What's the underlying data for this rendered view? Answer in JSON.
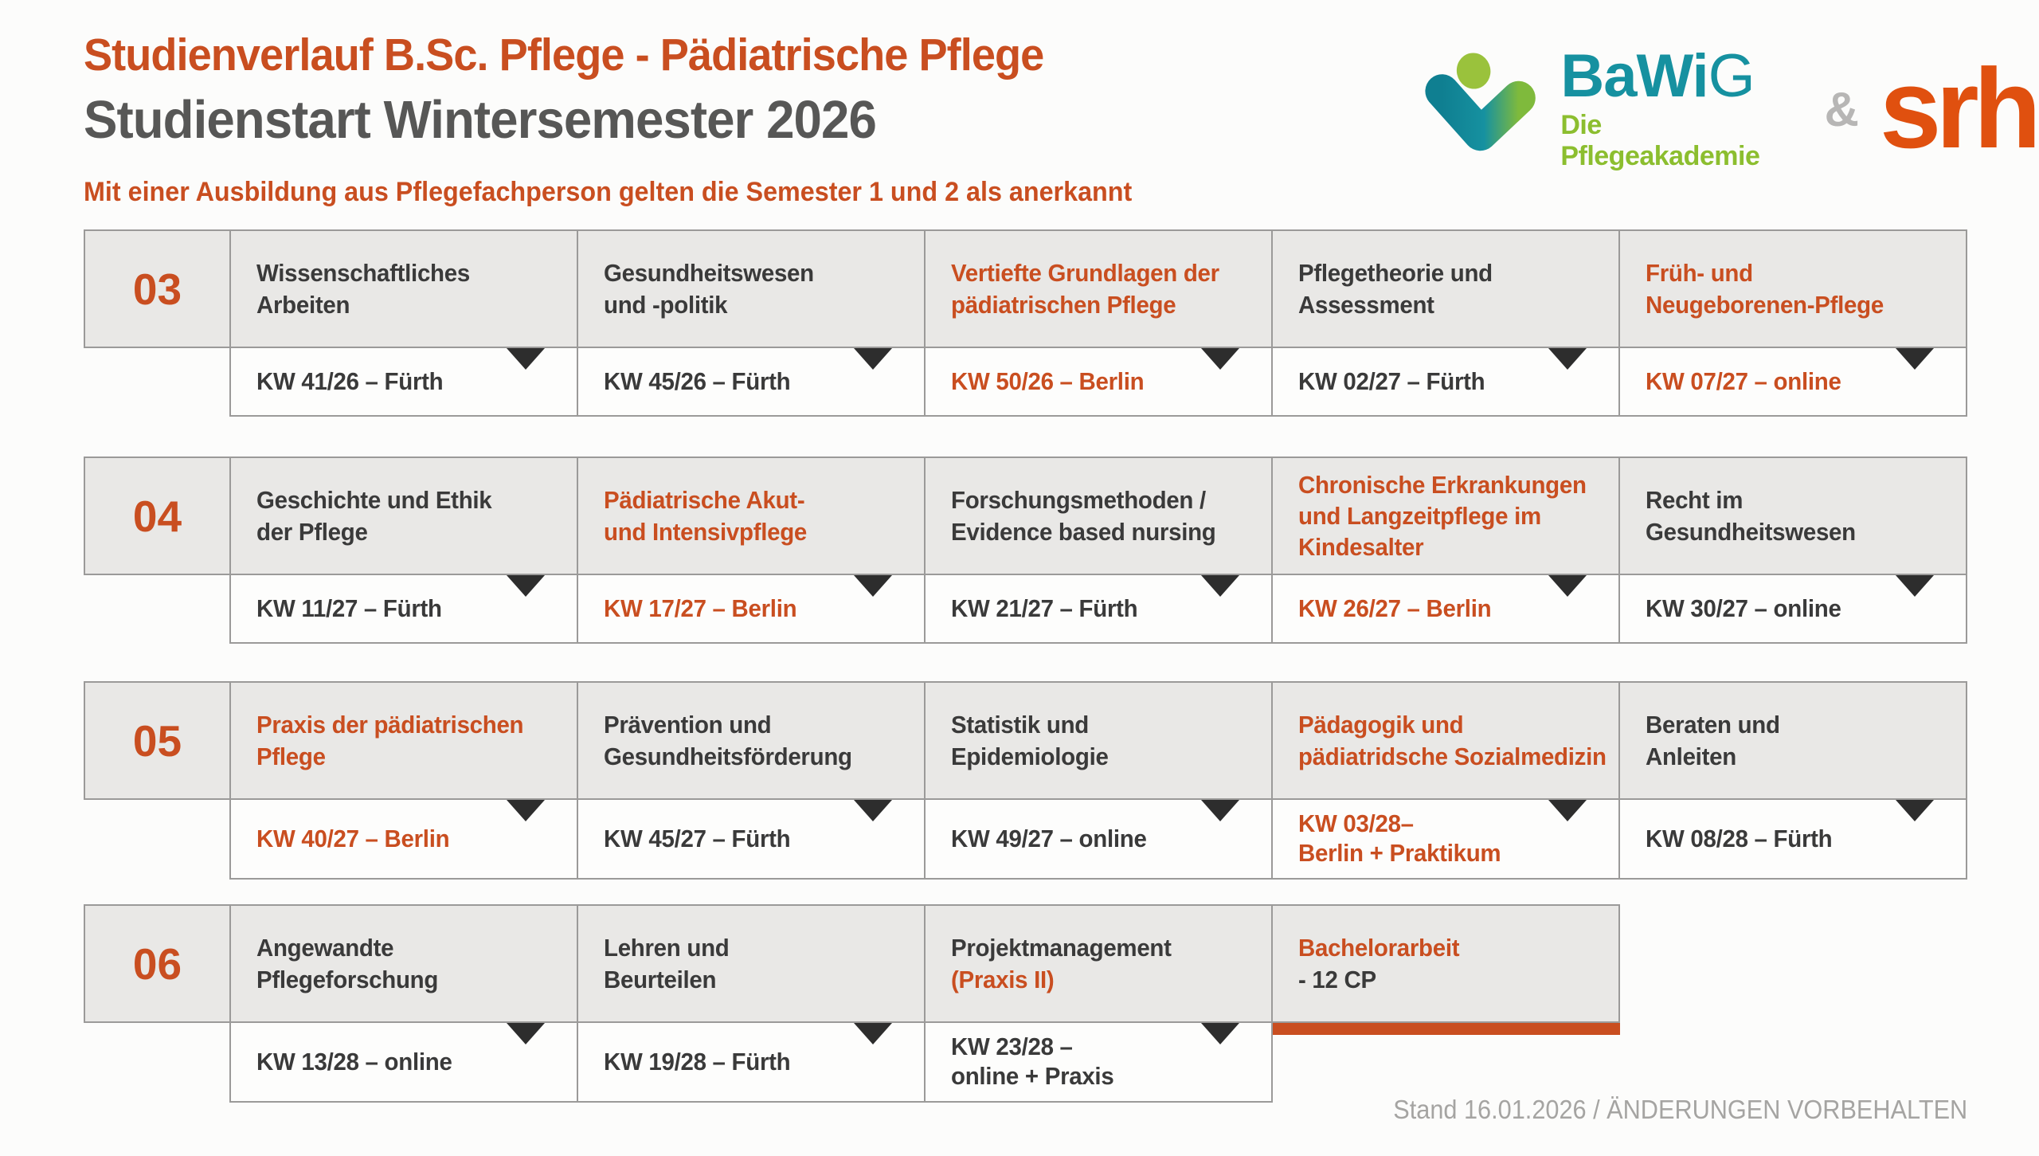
{
  "header": {
    "title": "Studienverlauf B.Sc. Pflege - Pädiatrische Pflege",
    "subtitle": "Studienstart Wintersemester 2026",
    "note": "Mit einer Ausbildung aus Pflegefachperson gelten die Semester 1 und 2 als anerkannt"
  },
  "logos": {
    "bawig_bold": "BaWi",
    "bawig_light": "G",
    "bawig_tagline": "Die Pflegeakademie",
    "ampersand": "&",
    "srh": "srh"
  },
  "colors": {
    "accent": "#C94E20",
    "dark": "#3A3A3A",
    "subtitle_gray": "#575756",
    "bawig_teal": "#1691A0",
    "bawig_green": "#8CBE2F",
    "srh_orange": "#E0500F",
    "border_gray": "#9B9A99",
    "cell_gray": "#E9E8E6",
    "triangle_dark": "#2D2D2D",
    "footer_gray": "#A5A4A2"
  },
  "semesters": [
    {
      "number": "03",
      "modules": [
        {
          "lines": [
            {
              "t": "Wissenschaftliches",
              "hl": false
            },
            {
              "t": "Arbeiten",
              "hl": false
            }
          ],
          "date": {
            "lines": [
              {
                "t": "KW 41/26 – Fürth"
              }
            ],
            "hl": false
          }
        },
        {
          "lines": [
            {
              "t": "Gesundheitswesen",
              "hl": false
            },
            {
              "t": "und -politik",
              "hl": false
            }
          ],
          "date": {
            "lines": [
              {
                "t": "KW 45/26 – Fürth"
              }
            ],
            "hl": false
          }
        },
        {
          "lines": [
            {
              "t": "Vertiefte Grundlagen der",
              "hl": true
            },
            {
              "t": "pädiatrischen Pflege",
              "hl": true
            }
          ],
          "date": {
            "lines": [
              {
                "t": "KW 50/26 – Berlin"
              }
            ],
            "hl": true
          }
        },
        {
          "lines": [
            {
              "t": "Pflegetheorie und",
              "hl": false
            },
            {
              "t": "Assessment",
              "hl": false
            }
          ],
          "date": {
            "lines": [
              {
                "t": "KW 02/27 – Fürth"
              }
            ],
            "hl": false
          }
        },
        {
          "lines": [
            {
              "t": "Früh- und",
              "hl": true
            },
            {
              "t": "Neugeborenen-Pflege",
              "hl": true
            }
          ],
          "date": {
            "lines": [
              {
                "t": "KW 07/27 – online"
              }
            ],
            "hl": true
          }
        }
      ]
    },
    {
      "number": "04",
      "modules": [
        {
          "lines": [
            {
              "t": "Geschichte und Ethik",
              "hl": false
            },
            {
              "t": "der Pflege",
              "hl": false
            }
          ],
          "date": {
            "lines": [
              {
                "t": "KW 11/27 – Fürth"
              }
            ],
            "hl": false
          }
        },
        {
          "lines": [
            {
              "t": "Pädiatrische Akut-",
              "hl": true
            },
            {
              "t": "und Intensivpflege",
              "hl": true
            }
          ],
          "date": {
            "lines": [
              {
                "t": "KW 17/27 – Berlin"
              }
            ],
            "hl": true
          }
        },
        {
          "lines": [
            {
              "t": "Forschungsmethoden /",
              "hl": false
            },
            {
              "t": "Evidence based nursing",
              "hl": false
            }
          ],
          "date": {
            "lines": [
              {
                "t": "KW 21/27 – Fürth"
              }
            ],
            "hl": false
          }
        },
        {
          "lines": [
            {
              "t": "Chronische Erkrankungen",
              "hl": true
            },
            {
              "t": "und Langzeitpflege im",
              "hl": true
            },
            {
              "t": "Kindesalter",
              "hl": true
            }
          ],
          "date": {
            "lines": [
              {
                "t": "KW 26/27 – Berlin"
              }
            ],
            "hl": true
          }
        },
        {
          "lines": [
            {
              "t": "Recht im",
              "hl": false
            },
            {
              "t": "Gesundheitswesen",
              "hl": false
            }
          ],
          "date": {
            "lines": [
              {
                "t": "KW 30/27 – online"
              }
            ],
            "hl": false
          }
        }
      ]
    },
    {
      "number": "05",
      "modules": [
        {
          "lines": [
            {
              "t": "Praxis der pädiatrischen",
              "hl": true
            },
            {
              "t": "Pflege",
              "hl": true
            }
          ],
          "date": {
            "lines": [
              {
                "t": "KW 40/27 – Berlin"
              }
            ],
            "hl": true
          }
        },
        {
          "lines": [
            {
              "t": "Prävention und",
              "hl": false
            },
            {
              "t": "Gesundheitsförderung",
              "hl": false
            }
          ],
          "date": {
            "lines": [
              {
                "t": "KW 45/27 – Fürth"
              }
            ],
            "hl": false
          }
        },
        {
          "lines": [
            {
              "t": "Statistik und",
              "hl": false
            },
            {
              "t": "Epidemiologie",
              "hl": false
            }
          ],
          "date": {
            "lines": [
              {
                "t": "KW 49/27 – online"
              }
            ],
            "hl": false
          }
        },
        {
          "lines": [
            {
              "t": "Pädagogik und",
              "hl": true
            },
            {
              "t": "pädiatridsche Sozialmedizin",
              "hl": true
            }
          ],
          "date": {
            "lines": [
              {
                "t": "KW 03/28–"
              },
              {
                "t": "Berlin + Praktikum"
              }
            ],
            "hl": true
          }
        },
        {
          "lines": [
            {
              "t": "Beraten und",
              "hl": false
            },
            {
              "t": "Anleiten",
              "hl": false
            }
          ],
          "date": {
            "lines": [
              {
                "t": "KW 08/28 – Fürth"
              }
            ],
            "hl": false
          }
        }
      ]
    },
    {
      "number": "06",
      "modules": [
        {
          "lines": [
            {
              "t": "Angewandte",
              "hl": false
            },
            {
              "t": "Pflegeforschung",
              "hl": false
            }
          ],
          "date": {
            "lines": [
              {
                "t": "KW 13/28 – online"
              }
            ],
            "hl": false
          }
        },
        {
          "lines": [
            {
              "t": "Lehren und",
              "hl": false
            },
            {
              "t": "Beurteilen",
              "hl": false
            }
          ],
          "date": {
            "lines": [
              {
                "t": "KW 19/28 – Fürth"
              }
            ],
            "hl": false
          }
        },
        {
          "lines": [
            {
              "t": "Projektmanagement",
              "hl": false
            },
            {
              "t": "(Praxis II)",
              "hl": true
            }
          ],
          "date": {
            "lines": [
              {
                "t": "KW 23/28 –"
              },
              {
                "t": "online + Praxis"
              }
            ],
            "hl": false
          }
        },
        {
          "lines": [
            {
              "t": "Bachelorarbeit",
              "hl": true
            },
            {
              "t": "- 12 CP",
              "hl": false
            }
          ],
          "date": null,
          "bar": true
        }
      ]
    }
  ],
  "footer": {
    "text": "Stand 16.01.2026 / ÄNDERUNGEN VORBEHALTEN"
  }
}
